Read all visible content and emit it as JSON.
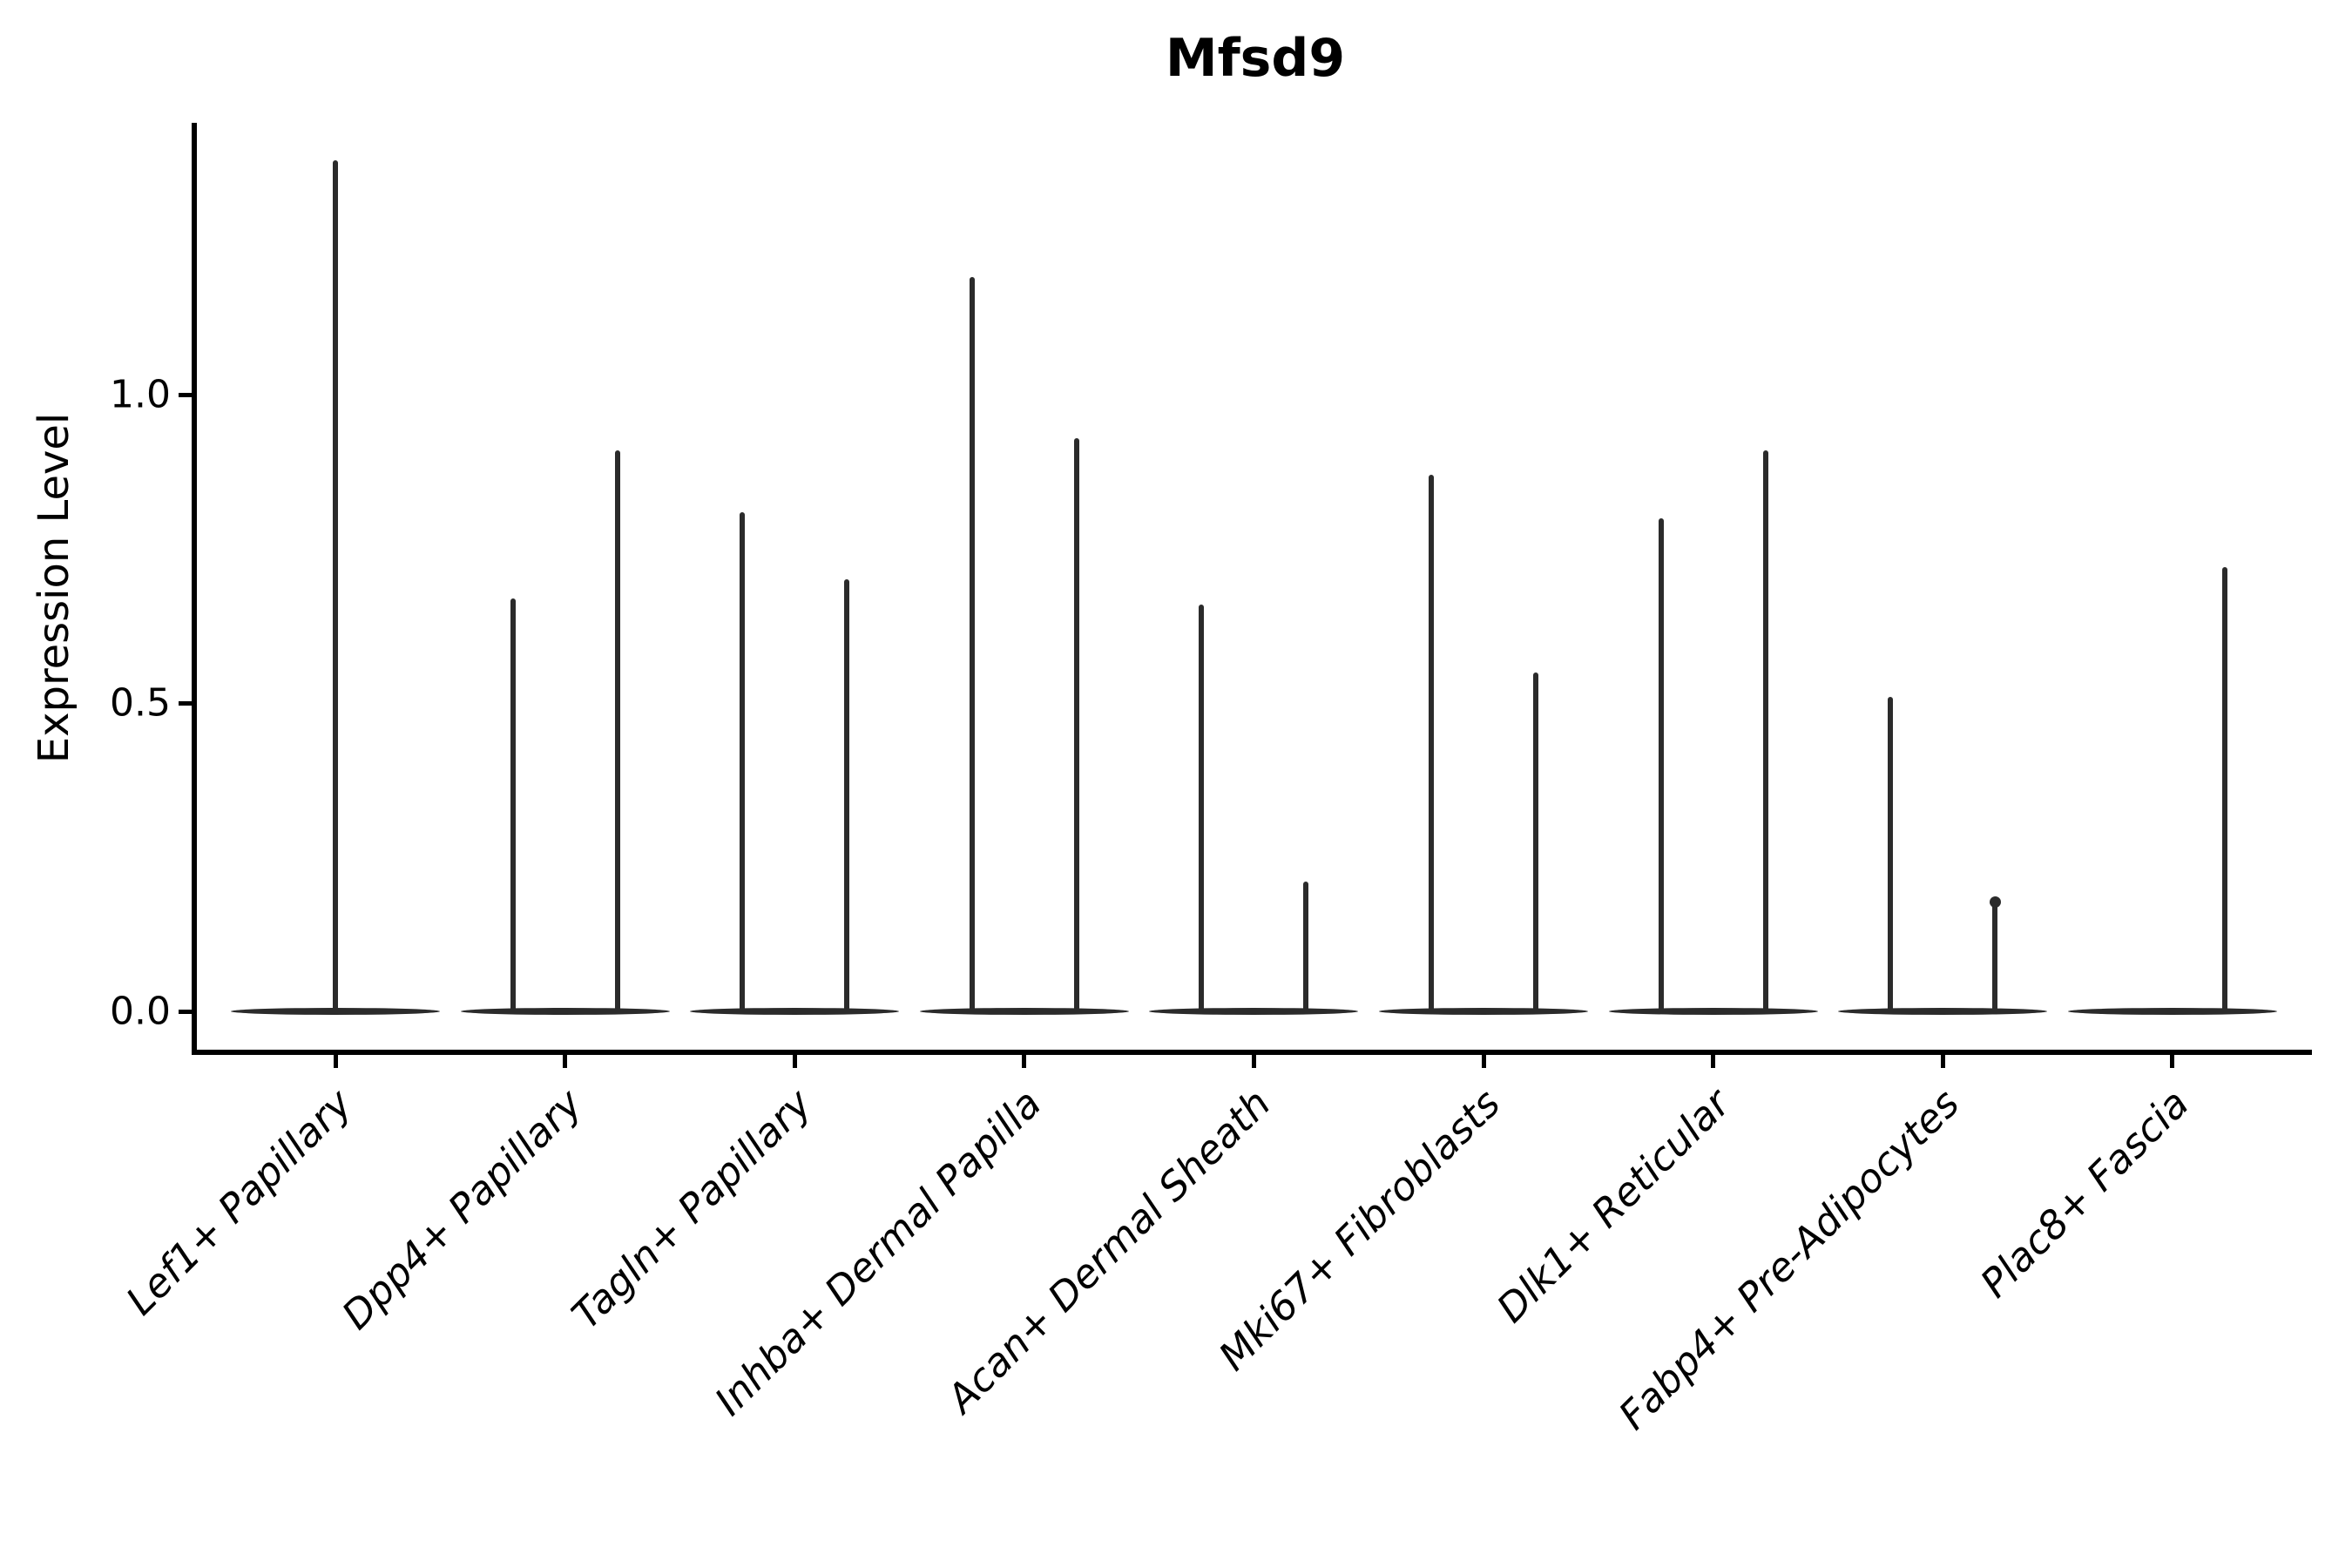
{
  "title": "Mfsd9",
  "y_axis": {
    "label": "Expression Level",
    "tick_labels": [
      "0.0",
      "0.5",
      "1.0"
    ]
  },
  "chart_data": {
    "type": "violin",
    "title": "Mfsd9",
    "xlabel": "",
    "ylabel": "Expression Level",
    "yticks": [
      0.0,
      0.5,
      1.0
    ],
    "ylim": [
      -0.07,
      1.44
    ],
    "grid": false,
    "legend": false,
    "description": "Single-gene expression violin plot (scRNA-seq style); violins are collapsed to a wide flat base at 0 with thin density spikes reaching the maximum expression values; most categories contain a left and right sub-violin spike pair.",
    "categories": [
      "Lef1+ Papillary",
      "Dpp4+ Papillary",
      "Tagln+ Papillary",
      "Inhba+ Dermal Papilla",
      "Acan+ Dermal Sheath",
      "Mki67+ Fibroblasts",
      "Dlk1+ Reticular",
      "Fabp4+ Pre-Adipocytes",
      "Plac8+ Fascia"
    ],
    "violins": [
      {
        "category": "Lef1+ Papillary",
        "baseline_value": 0.0,
        "spikes": [
          {
            "position": "center",
            "value": 1.38
          }
        ]
      },
      {
        "category": "Dpp4+ Papillary",
        "baseline_value": 0.0,
        "spikes": [
          {
            "position": "left",
            "value": 0.67
          },
          {
            "position": "right",
            "value": 0.91
          }
        ]
      },
      {
        "category": "Tagln+ Papillary",
        "baseline_value": 0.0,
        "spikes": [
          {
            "position": "left",
            "value": 0.81
          },
          {
            "position": "right",
            "value": 0.7
          }
        ]
      },
      {
        "category": "Inhba+ Dermal Papilla",
        "baseline_value": 0.0,
        "spikes": [
          {
            "position": "left",
            "value": 1.19
          },
          {
            "position": "right",
            "value": 0.93
          }
        ]
      },
      {
        "category": "Acan+ Dermal Sheath",
        "baseline_value": 0.0,
        "spikes": [
          {
            "position": "left",
            "value": 0.66
          },
          {
            "position": "right",
            "value": 0.21
          }
        ]
      },
      {
        "category": "Mki67+ Fibroblasts",
        "baseline_value": 0.0,
        "spikes": [
          {
            "position": "left",
            "value": 0.87
          },
          {
            "position": "right",
            "value": 0.55
          }
        ]
      },
      {
        "category": "Dlk1+ Reticular",
        "baseline_value": 0.0,
        "spikes": [
          {
            "position": "left",
            "value": 0.8
          },
          {
            "position": "right",
            "value": 0.91
          }
        ]
      },
      {
        "category": "Fabp4+ Pre-Adipocytes",
        "baseline_value": 0.0,
        "spikes": [
          {
            "position": "left",
            "value": 0.51
          },
          {
            "position": "right",
            "value": 0.18,
            "knob": true
          }
        ]
      },
      {
        "category": "Plac8+ Fascia",
        "baseline_value": 0.0,
        "spikes": [
          {
            "position": "right",
            "value": 0.72
          }
        ]
      }
    ],
    "colors": {
      "violin": "#2b2b2b",
      "axis": "#000000",
      "background": "#ffffff"
    }
  }
}
